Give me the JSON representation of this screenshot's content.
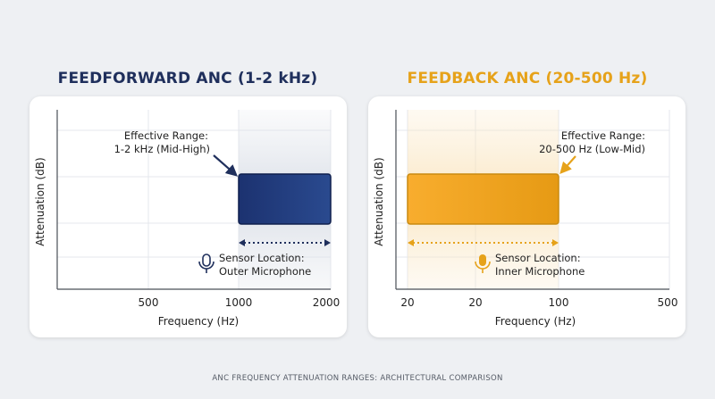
{
  "chart_data": [
    {
      "type": "bar",
      "title": "FEEDFORWARD ANC (1-2 kHz)",
      "xlabel": "Frequency (Hz)",
      "ylabel": "Attenuation (dB)",
      "x_ticks": [
        "500",
        "1000",
        "2000"
      ],
      "effective_range": [
        1000,
        2000
      ],
      "annotation_lines": [
        "Effective Range:",
        "1-2 kHz (Mid-High)"
      ],
      "sensor_lines": [
        "Sensor Location:",
        "Outer Microphone"
      ],
      "color": "#1f3a78",
      "grid": true
    },
    {
      "type": "bar",
      "title": "FEEDBACK ANC (20-500 Hz)",
      "xlabel": "Frequency (Hz)",
      "ylabel": "Attenuation (dB)",
      "x_ticks": [
        "20",
        "20",
        "100",
        "500"
      ],
      "effective_range": [
        20,
        500
      ],
      "annotation_lines": [
        "Effective Range:",
        "20-500 Hz (Low-Mid)"
      ],
      "sensor_lines": [
        "Sensor Location:",
        "Inner Microphone"
      ],
      "color": "#f0a21e",
      "grid": true
    }
  ],
  "footer": "ANC FREQUENCY ATTENUATION RANGES: ARCHITECTURAL COMPARISON",
  "colors": {
    "feedforward": "#1f3a78",
    "feedback": "#f0a21e",
    "title_left": "#1f2f5c",
    "title_right": "#e6a21a"
  },
  "icons": {
    "sensor": "microphone-icon"
  }
}
